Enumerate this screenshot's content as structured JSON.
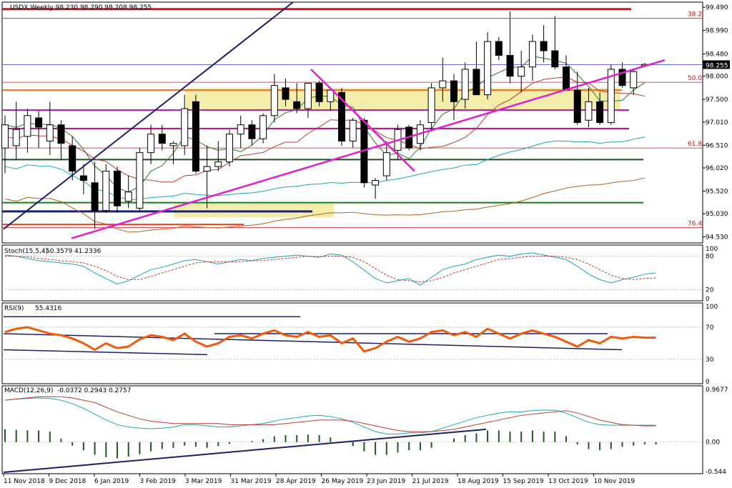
{
  "header": {
    "symbol_line": "USDX,Weekly 98.230 98.290 98.208 98.255"
  },
  "colors": {
    "bull_candle": "#ffffff",
    "bear_candle": "#000000",
    "stoch_main": "#1aa6b7",
    "stoch_signal": "#c0392b",
    "rsi": "#f05a0a",
    "macd_main": "#1aa6b7",
    "macd_signal": "#c0392b",
    "histogram": "#1c5c1c",
    "trend_navy": "#1c1f6e",
    "trend_magenta": "#e020d0",
    "zone": "#f0e68c",
    "fib": "#d0121b"
  },
  "chart_data": [
    {
      "type": "candlestick",
      "title": "USDX,Weekly",
      "ylim": [
        94.4,
        99.6
      ],
      "yticks": [
        "99.490",
        "98.990",
        "98.480",
        "98.000",
        "97.500",
        "97.010",
        "96.510",
        "96.020",
        "95.520",
        "95.030",
        "94.530"
      ],
      "last_price_label": "98.255",
      "fib_levels": [
        {
          "label": "38.2",
          "value": 99.25
        },
        {
          "label": "50.0",
          "value": 97.87
        },
        {
          "label": "61.8",
          "value": 96.45
        },
        {
          "label": "76.4",
          "value": 94.73
        }
      ],
      "xticks": [
        "11 Nov 2018",
        "9 Dec 2018",
        "6 Jan 2019",
        "3 Feb 2019",
        "3 Mar 2019",
        "31 Mar 2019",
        "28 Apr 2019",
        "26 May 2019",
        "23 Jun 2019",
        "21 Jul 2019",
        "18 Aug 2019",
        "15 Sep 2019",
        "13 Oct 2019",
        "10 Nov 2019"
      ],
      "candles": [
        {
          "o": 96.45,
          "h": 97.15,
          "l": 95.9,
          "c": 96.95
        },
        {
          "o": 96.5,
          "h": 97.45,
          "l": 96.2,
          "c": 96.85
        },
        {
          "o": 96.7,
          "h": 97.3,
          "l": 96.35,
          "c": 97.15
        },
        {
          "o": 97.1,
          "h": 97.25,
          "l": 96.45,
          "c": 96.9
        },
        {
          "o": 96.6,
          "h": 97.45,
          "l": 96.3,
          "c": 96.95
        },
        {
          "o": 96.95,
          "h": 97.05,
          "l": 96.2,
          "c": 96.55
        },
        {
          "o": 96.5,
          "h": 96.7,
          "l": 95.75,
          "c": 95.95
        },
        {
          "o": 95.85,
          "h": 96.1,
          "l": 95.45,
          "c": 95.75
        },
        {
          "o": 95.7,
          "h": 96.15,
          "l": 94.7,
          "c": 95.1
        },
        {
          "o": 95.1,
          "h": 96.1,
          "l": 95.05,
          "c": 95.95
        },
        {
          "o": 95.95,
          "h": 96.05,
          "l": 95.05,
          "c": 95.2
        },
        {
          "o": 95.3,
          "h": 95.85,
          "l": 95.15,
          "c": 95.5
        },
        {
          "o": 95.15,
          "h": 96.45,
          "l": 95.1,
          "c": 96.35
        },
        {
          "o": 96.35,
          "h": 96.95,
          "l": 96.1,
          "c": 96.75
        },
        {
          "o": 96.75,
          "h": 96.95,
          "l": 96.4,
          "c": 96.55
        },
        {
          "o": 96.5,
          "h": 96.6,
          "l": 96.1,
          "c": 96.55
        },
        {
          "o": 96.5,
          "h": 97.6,
          "l": 96.3,
          "c": 97.3
        },
        {
          "o": 97.45,
          "h": 97.6,
          "l": 95.9,
          "c": 95.95
        },
        {
          "o": 95.95,
          "h": 96.5,
          "l": 95.15,
          "c": 96.05
        },
        {
          "o": 96.05,
          "h": 96.6,
          "l": 95.95,
          "c": 96.15
        },
        {
          "o": 96.15,
          "h": 96.85,
          "l": 96.05,
          "c": 96.75
        },
        {
          "o": 96.75,
          "h": 97.15,
          "l": 96.45,
          "c": 96.95
        },
        {
          "o": 96.95,
          "h": 97.05,
          "l": 96.5,
          "c": 96.65
        },
        {
          "o": 96.65,
          "h": 97.2,
          "l": 96.55,
          "c": 97.15
        },
        {
          "o": 97.15,
          "h": 98.05,
          "l": 97.0,
          "c": 97.8
        },
        {
          "o": 97.75,
          "h": 97.95,
          "l": 97.35,
          "c": 97.5
        },
        {
          "o": 97.45,
          "h": 97.85,
          "l": 97.2,
          "c": 97.3
        },
        {
          "o": 97.3,
          "h": 97.85,
          "l": 97.1,
          "c": 97.85
        },
        {
          "o": 97.85,
          "h": 97.9,
          "l": 97.35,
          "c": 97.45
        },
        {
          "o": 97.45,
          "h": 97.65,
          "l": 97.25,
          "c": 97.7
        },
        {
          "o": 97.65,
          "h": 97.75,
          "l": 96.5,
          "c": 96.6
        },
        {
          "o": 96.6,
          "h": 97.1,
          "l": 96.45,
          "c": 97.05
        },
        {
          "o": 97.05,
          "h": 97.1,
          "l": 95.6,
          "c": 95.7
        },
        {
          "o": 95.65,
          "h": 95.8,
          "l": 95.35,
          "c": 95.75
        },
        {
          "o": 95.85,
          "h": 96.6,
          "l": 95.75,
          "c": 96.35
        },
        {
          "o": 96.4,
          "h": 96.95,
          "l": 96.2,
          "c": 96.85
        },
        {
          "o": 96.9,
          "h": 96.95,
          "l": 96.4,
          "c": 96.45
        },
        {
          "o": 96.55,
          "h": 97.05,
          "l": 96.4,
          "c": 96.95
        },
        {
          "o": 97.0,
          "h": 97.85,
          "l": 96.8,
          "c": 97.75
        },
        {
          "o": 97.75,
          "h": 98.4,
          "l": 97.45,
          "c": 97.9
        },
        {
          "o": 97.9,
          "h": 98.05,
          "l": 97.05,
          "c": 97.45
        },
        {
          "o": 97.5,
          "h": 98.3,
          "l": 97.3,
          "c": 98.15
        },
        {
          "o": 98.15,
          "h": 98.75,
          "l": 97.6,
          "c": 97.6
        },
        {
          "o": 97.6,
          "h": 98.95,
          "l": 97.5,
          "c": 98.75
        },
        {
          "o": 98.75,
          "h": 98.85,
          "l": 98.35,
          "c": 98.45
        },
        {
          "o": 98.45,
          "h": 99.4,
          "l": 97.85,
          "c": 98.0
        },
        {
          "o": 98.0,
          "h": 98.55,
          "l": 97.65,
          "c": 98.2
        },
        {
          "o": 98.2,
          "h": 98.9,
          "l": 97.9,
          "c": 98.75
        },
        {
          "o": 98.75,
          "h": 99.1,
          "l": 98.3,
          "c": 98.55
        },
        {
          "o": 98.55,
          "h": 99.3,
          "l": 98.15,
          "c": 98.2
        },
        {
          "o": 98.2,
          "h": 98.45,
          "l": 97.75,
          "c": 97.7
        },
        {
          "o": 97.7,
          "h": 98.1,
          "l": 96.95,
          "c": 97.0
        },
        {
          "o": 97.05,
          "h": 97.75,
          "l": 96.9,
          "c": 97.45
        },
        {
          "o": 97.45,
          "h": 97.65,
          "l": 96.95,
          "c": 97.0
        },
        {
          "o": 97.0,
          "h": 98.25,
          "l": 96.95,
          "c": 98.15
        },
        {
          "o": 98.15,
          "h": 98.3,
          "l": 97.75,
          "c": 97.8
        },
        {
          "o": 97.75,
          "h": 98.15,
          "l": 97.6,
          "c": 98.1
        },
        {
          "o": 98.23,
          "h": 98.29,
          "l": 98.21,
          "c": 98.255
        }
      ]
    },
    {
      "type": "line",
      "title": "Stoch(15,5,4)",
      "header_values": "50.3579 41.2336",
      "ylim": [
        0,
        100
      ],
      "yticks": [
        "100",
        "80",
        "20",
        "0"
      ],
      "series": [
        {
          "name": "main",
          "values": [
            82,
            80,
            76,
            72,
            70,
            68,
            66,
            62,
            50,
            40,
            30,
            36,
            46,
            56,
            60,
            66,
            72,
            74,
            70,
            66,
            70,
            74,
            72,
            76,
            78,
            80,
            82,
            80,
            78,
            84,
            82,
            70,
            55,
            40,
            32,
            36,
            40,
            28,
            42,
            56,
            62,
            66,
            74,
            78,
            82,
            80,
            84,
            86,
            82,
            78,
            74,
            62,
            48,
            38,
            32,
            38,
            42,
            48,
            50
          ]
        },
        {
          "name": "signal",
          "values": [
            80,
            80,
            79,
            76,
            74,
            72,
            70,
            68,
            62,
            54,
            44,
            38,
            38,
            44,
            50,
            56,
            62,
            68,
            70,
            70,
            70,
            70,
            72,
            72,
            74,
            76,
            78,
            80,
            79,
            80,
            80,
            78,
            70,
            58,
            46,
            38,
            36,
            34,
            36,
            42,
            50,
            56,
            62,
            68,
            74,
            76,
            78,
            80,
            80,
            80,
            78,
            74,
            66,
            56,
            46,
            40,
            38,
            40,
            41
          ]
        }
      ]
    },
    {
      "type": "line",
      "title": "RSI(9)",
      "header_values": "55.4316",
      "ylim": [
        0,
        100
      ],
      "yticks": [
        "100",
        "70",
        "30",
        "0"
      ],
      "series": [
        {
          "name": "RSI(9)",
          "values": [
            64,
            68,
            70,
            66,
            62,
            60,
            56,
            50,
            42,
            50,
            44,
            46,
            55,
            60,
            58,
            54,
            62,
            52,
            46,
            50,
            58,
            60,
            56,
            62,
            66,
            60,
            58,
            64,
            58,
            60,
            50,
            56,
            40,
            44,
            52,
            58,
            52,
            56,
            64,
            66,
            60,
            64,
            58,
            68,
            62,
            56,
            62,
            66,
            62,
            58,
            52,
            46,
            54,
            50,
            58,
            56,
            58,
            57,
            57
          ]
        }
      ]
    },
    {
      "type": "bar",
      "title": "MACD(12,26,9)",
      "header_values": "-0.0372 0.2943 0.2757",
      "ylim": [
        -0.544,
        0.9677
      ],
      "yticks": [
        "0.9677",
        "0.00",
        "-0.544"
      ],
      "series": [
        {
          "name": "histogram",
          "values": [
            0.22,
            0.21,
            0.2,
            0.2,
            0.18,
            0.06,
            -0.06,
            -0.14,
            -0.22,
            -0.26,
            -0.28,
            -0.25,
            -0.21,
            -0.16,
            -0.12,
            -0.1,
            -0.06,
            -0.08,
            -0.1,
            -0.07,
            -0.03,
            0.0,
            0.02,
            0.05,
            0.1,
            0.12,
            0.12,
            0.13,
            0.12,
            0.08,
            0.0,
            -0.07,
            -0.16,
            -0.22,
            -0.22,
            -0.18,
            -0.14,
            -0.14,
            -0.1,
            0.0,
            0.06,
            0.12,
            0.15,
            0.2,
            0.2,
            0.18,
            0.18,
            0.2,
            0.18,
            0.18,
            0.1,
            -0.04,
            -0.12,
            -0.14,
            -0.12,
            -0.08,
            -0.06,
            -0.04,
            -0.04
          ]
        },
        {
          "name": "main",
          "values": [
            0.72,
            0.74,
            0.75,
            0.76,
            0.75,
            0.72,
            0.66,
            0.58,
            0.48,
            0.38,
            0.3,
            0.26,
            0.24,
            0.23,
            0.24,
            0.26,
            0.3,
            0.3,
            0.28,
            0.26,
            0.26,
            0.28,
            0.3,
            0.32,
            0.36,
            0.4,
            0.42,
            0.45,
            0.46,
            0.44,
            0.4,
            0.34,
            0.26,
            0.18,
            0.14,
            0.14,
            0.16,
            0.16,
            0.18,
            0.24,
            0.3,
            0.36,
            0.42,
            0.46,
            0.5,
            0.52,
            0.52,
            0.54,
            0.55,
            0.55,
            0.5,
            0.42,
            0.34,
            0.3,
            0.29,
            0.29,
            0.29,
            0.29,
            0.29
          ]
        },
        {
          "name": "signal",
          "values": [
            0.72,
            0.74,
            0.76,
            0.78,
            0.78,
            0.78,
            0.76,
            0.72,
            0.68,
            0.6,
            0.52,
            0.46,
            0.4,
            0.36,
            0.34,
            0.32,
            0.32,
            0.32,
            0.32,
            0.32,
            0.3,
            0.3,
            0.3,
            0.3,
            0.3,
            0.32,
            0.34,
            0.36,
            0.38,
            0.38,
            0.38,
            0.36,
            0.32,
            0.28,
            0.24,
            0.2,
            0.18,
            0.18,
            0.18,
            0.2,
            0.22,
            0.26,
            0.3,
            0.34,
            0.38,
            0.42,
            0.46,
            0.48,
            0.5,
            0.52,
            0.54,
            0.5,
            0.44,
            0.38,
            0.34,
            0.3,
            0.29,
            0.28,
            0.28
          ]
        }
      ]
    }
  ]
}
